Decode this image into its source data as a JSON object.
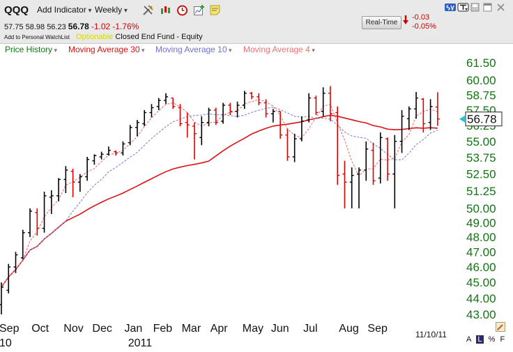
{
  "toolbar": {
    "symbol": "QQQ",
    "add_indicator": "Add Indicator",
    "period": "Weekly",
    "quote": {
      "open": "57.75",
      "high": "58.98",
      "low": "56.23",
      "last": "56.78",
      "change": "-1.02",
      "change_pct": "-1.76%"
    },
    "watchlist_label": "Add to Personal WatchList",
    "optionable": "Optionable",
    "fund_type": "Closed End Fund - Equity",
    "realtime_label": "Real-Time",
    "rt_change": "-0.03",
    "rt_change_pct": "-0.05%",
    "icons": [
      "tools-icon",
      "candlestick-icon",
      "clock-icon",
      "add-chart-icon",
      "note-icon"
    ],
    "window_icons": [
      "sv-icon",
      "menu-icon",
      "save-icon",
      "window-icon",
      "close-icon"
    ]
  },
  "legend": {
    "price_history": "Price History",
    "ma30": "Moving Average 30",
    "ma10": "Moving Average 10",
    "ma4": "Moving Average 4"
  },
  "colors": {
    "up_bar": "#000000",
    "down_bar": "#e00000",
    "ma30": "#dd1111",
    "ma10": "#8080e0",
    "ma4": "#ee7070",
    "axis_label": "#137413",
    "legend_price": "#137413",
    "last_price_marker": "#22c6d6"
  },
  "footer": {
    "date": "11/10/11",
    "scale_buttons": [
      "A",
      "L",
      "%",
      "F"
    ],
    "scale_active": "L"
  },
  "chart_data": {
    "type": "bar",
    "subtype": "ohlc",
    "title": "",
    "xlabel": "",
    "ylabel": "",
    "ylim": [
      43.0,
      62.0
    ],
    "y_scale": "log",
    "grid": false,
    "legend_position": "top-left",
    "y_ticks": [
      61.5,
      60.0,
      58.75,
      57.5,
      56.25,
      55.0,
      53.75,
      52.5,
      51.25,
      50.0,
      49.0,
      48.0,
      47.0,
      46.0,
      45.0,
      44.0,
      43.0
    ],
    "y_tick_labels": [
      "61.50",
      "60.00",
      "58.75",
      "57.50",
      "56.25",
      "55.00",
      "53.75",
      "52.50",
      "51.25",
      "50.00",
      "49.00",
      "48.00",
      "47.00",
      "46.00",
      "45.00",
      "44.00",
      "43.00"
    ],
    "last_price": 56.78,
    "last_price_label": "56.78",
    "x_month_labels": [
      {
        "label": "Sep",
        "week": 0
      },
      {
        "label": "Oct",
        "week": 4.5
      },
      {
        "label": "Nov",
        "week": 9
      },
      {
        "label": "Dec",
        "week": 13
      },
      {
        "label": "Jan",
        "week": 17.5
      },
      {
        "label": "Feb",
        "week": 21.5
      },
      {
        "label": "Mar",
        "week": 25.5
      },
      {
        "label": "Apr",
        "week": 29.5
      },
      {
        "label": "May",
        "week": 34
      },
      {
        "label": "Jun",
        "week": 38
      },
      {
        "label": "Jul",
        "week": 42.5
      },
      {
        "label": "Aug",
        "week": 47.5
      },
      {
        "label": "Sep",
        "week": 51.5
      }
    ],
    "x_year_labels": [
      {
        "label": "10",
        "week": 0
      },
      {
        "label": "2011",
        "week": 18
      }
    ],
    "weeks": [
      {
        "o": 43.6,
        "h": 45.0,
        "l": 43.0,
        "c": 44.7
      },
      {
        "o": 44.5,
        "h": 46.2,
        "l": 44.3,
        "c": 46.0
      },
      {
        "o": 46.0,
        "h": 47.0,
        "l": 45.6,
        "c": 46.8
      },
      {
        "o": 46.6,
        "h": 48.5,
        "l": 46.5,
        "c": 48.3
      },
      {
        "o": 48.3,
        "h": 50.0,
        "l": 48.0,
        "c": 49.8
      },
      {
        "o": 49.7,
        "h": 50.0,
        "l": 48.1,
        "c": 48.6
      },
      {
        "o": 48.6,
        "h": 51.2,
        "l": 48.3,
        "c": 50.9
      },
      {
        "o": 50.8,
        "h": 51.3,
        "l": 49.6,
        "c": 50.9
      },
      {
        "o": 50.9,
        "h": 52.2,
        "l": 50.5,
        "c": 52.1
      },
      {
        "o": 52.1,
        "h": 53.1,
        "l": 51.1,
        "c": 52.8
      },
      {
        "o": 52.7,
        "h": 52.9,
        "l": 50.8,
        "c": 51.9
      },
      {
        "o": 51.9,
        "h": 52.5,
        "l": 51.2,
        "c": 52.3
      },
      {
        "o": 52.3,
        "h": 53.8,
        "l": 52.0,
        "c": 53.6
      },
      {
        "o": 53.5,
        "h": 54.0,
        "l": 53.2,
        "c": 53.9
      },
      {
        "o": 53.8,
        "h": 54.2,
        "l": 53.6,
        "c": 54.0
      },
      {
        "o": 54.0,
        "h": 54.6,
        "l": 53.9,
        "c": 54.3
      },
      {
        "o": 54.2,
        "h": 54.3,
        "l": 53.9,
        "c": 54.1
      },
      {
        "o": 54.1,
        "h": 55.0,
        "l": 53.9,
        "c": 54.8
      },
      {
        "o": 54.9,
        "h": 56.3,
        "l": 54.7,
        "c": 56.1
      },
      {
        "o": 56.1,
        "h": 56.7,
        "l": 55.4,
        "c": 56.5
      },
      {
        "o": 56.4,
        "h": 57.5,
        "l": 56.2,
        "c": 57.3
      },
      {
        "o": 57.3,
        "h": 58.0,
        "l": 56.9,
        "c": 57.7
      },
      {
        "o": 57.8,
        "h": 58.5,
        "l": 57.5,
        "c": 58.3
      },
      {
        "o": 58.3,
        "h": 58.9,
        "l": 58.0,
        "c": 58.6
      },
      {
        "o": 58.5,
        "h": 58.5,
        "l": 57.6,
        "c": 57.8
      },
      {
        "o": 57.7,
        "h": 58.0,
        "l": 56.2,
        "c": 56.4
      },
      {
        "o": 56.5,
        "h": 57.3,
        "l": 55.3,
        "c": 56.3
      },
      {
        "o": 56.2,
        "h": 56.5,
        "l": 53.6,
        "c": 55.6
      },
      {
        "o": 55.3,
        "h": 57.0,
        "l": 54.7,
        "c": 56.5
      },
      {
        "o": 56.5,
        "h": 57.7,
        "l": 56.2,
        "c": 57.5
      },
      {
        "o": 57.5,
        "h": 57.7,
        "l": 56.3,
        "c": 56.5
      },
      {
        "o": 56.6,
        "h": 58.1,
        "l": 56.4,
        "c": 57.9
      },
      {
        "o": 57.9,
        "h": 58.1,
        "l": 57.1,
        "c": 57.4
      },
      {
        "o": 57.4,
        "h": 58.2,
        "l": 56.9,
        "c": 57.9
      },
      {
        "o": 57.9,
        "h": 59.1,
        "l": 57.6,
        "c": 58.9
      },
      {
        "o": 58.9,
        "h": 59.0,
        "l": 58.4,
        "c": 58.6
      },
      {
        "o": 58.6,
        "h": 58.9,
        "l": 57.9,
        "c": 58.1
      },
      {
        "o": 58.1,
        "h": 58.4,
        "l": 56.9,
        "c": 57.2
      },
      {
        "o": 57.2,
        "h": 57.6,
        "l": 56.5,
        "c": 57.4
      },
      {
        "o": 57.4,
        "h": 57.4,
        "l": 55.2,
        "c": 55.5
      },
      {
        "o": 55.5,
        "h": 56.0,
        "l": 53.5,
        "c": 53.8
      },
      {
        "o": 53.8,
        "h": 55.6,
        "l": 53.4,
        "c": 55.2
      },
      {
        "o": 55.2,
        "h": 57.0,
        "l": 55.0,
        "c": 56.6
      },
      {
        "o": 56.7,
        "h": 58.9,
        "l": 56.5,
        "c": 58.5
      },
      {
        "o": 58.5,
        "h": 58.7,
        "l": 57.1,
        "c": 57.3
      },
      {
        "o": 57.4,
        "h": 59.4,
        "l": 57.0,
        "c": 58.9
      },
      {
        "o": 58.9,
        "h": 59.5,
        "l": 56.6,
        "c": 57.2
      },
      {
        "o": 57.3,
        "h": 57.8,
        "l": 51.7,
        "c": 52.4
      },
      {
        "o": 52.5,
        "h": 53.5,
        "l": 50.0,
        "c": 51.9
      },
      {
        "o": 51.9,
        "h": 53.0,
        "l": 50.0,
        "c": 52.4
      },
      {
        "o": 52.5,
        "h": 53.0,
        "l": 50.0,
        "c": 52.8
      },
      {
        "o": 52.8,
        "h": 55.0,
        "l": 52.0,
        "c": 54.4
      },
      {
        "o": 54.3,
        "h": 54.9,
        "l": 51.7,
        "c": 52.0
      },
      {
        "o": 52.2,
        "h": 55.7,
        "l": 51.8,
        "c": 55.3
      },
      {
        "o": 55.2,
        "h": 55.3,
        "l": 52.0,
        "c": 52.5
      },
      {
        "o": 52.5,
        "h": 55.5,
        "l": 50.0,
        "c": 55.0
      },
      {
        "o": 55.0,
        "h": 57.5,
        "l": 54.1,
        "c": 57.0
      },
      {
        "o": 56.8,
        "h": 57.8,
        "l": 55.9,
        "c": 57.6
      },
      {
        "o": 57.6,
        "h": 59.0,
        "l": 56.8,
        "c": 58.5
      },
      {
        "o": 58.4,
        "h": 58.5,
        "l": 55.7,
        "c": 56.4
      },
      {
        "o": 56.5,
        "h": 58.4,
        "l": 55.9,
        "c": 57.8
      },
      {
        "o": 57.75,
        "h": 58.98,
        "l": 56.23,
        "c": 56.78
      }
    ]
  }
}
